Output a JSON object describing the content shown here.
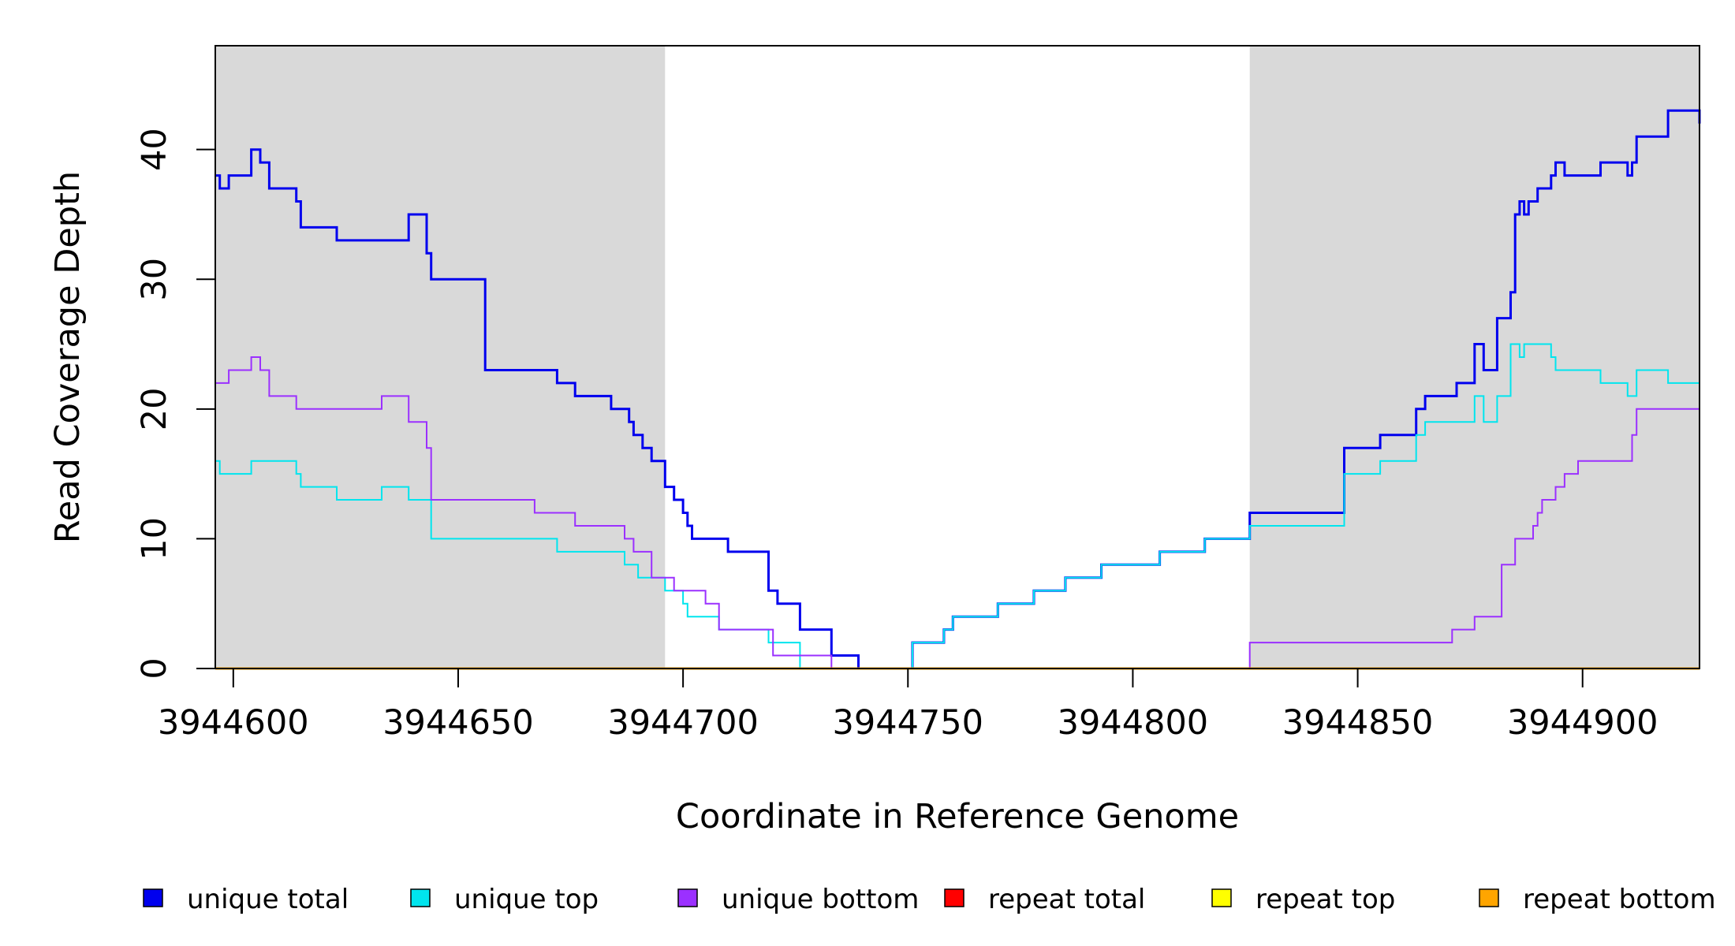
{
  "chart_data": {
    "type": "line",
    "title": "",
    "xlabel": "Coordinate in Reference Genome",
    "ylabel": "Read Coverage Depth",
    "xlim": [
      3944596,
      3944926
    ],
    "ylim": [
      0,
      48
    ],
    "x_ticks": [
      3944600,
      3944650,
      3944700,
      3944750,
      3944800,
      3944850,
      3944900
    ],
    "x_tick_labels": [
      "3944600",
      "3944650",
      "3944700",
      "3944750",
      "3944800",
      "3944850",
      "3944900"
    ],
    "y_ticks": [
      0,
      10,
      20,
      30,
      40
    ],
    "y_tick_labels": [
      "0",
      "10",
      "20",
      "30",
      "40"
    ],
    "shaded_regions": [
      [
        3944596,
        3944696
      ],
      [
        3944826,
        3944926
      ]
    ],
    "shade_color": "#d9d9d9",
    "legend_position": "bottom",
    "legend": [
      {
        "name": "unique total",
        "color": "#0000ee"
      },
      {
        "name": "unique top",
        "color": "#00e5ee"
      },
      {
        "name": "unique bottom",
        "color": "#9b30ff"
      },
      {
        "name": "repeat total",
        "color": "#ff0000"
      },
      {
        "name": "repeat top",
        "color": "#ffff00"
      },
      {
        "name": "repeat bottom",
        "color": "#ffa500"
      }
    ],
    "series": [
      {
        "name": "unique total",
        "color": "#0000ee",
        "stroke": 3,
        "x": [
          3944596,
          3944597,
          3944599,
          3944600,
          3944604,
          3944606,
          3944608,
          3944614,
          3944615,
          3944623,
          3944633,
          3944639,
          3944643,
          3944644,
          3944656,
          3944667,
          3944672,
          3944676,
          3944684,
          3944687,
          3944688,
          3944689,
          3944691,
          3944693,
          3944696,
          3944698,
          3944700,
          3944701,
          3944702,
          3944708,
          3944710,
          3944719,
          3944721,
          3944726,
          3944733,
          3944739,
          3944751,
          3944758,
          3944760,
          3944770,
          3944778,
          3944785,
          3944793,
          3944806,
          3944816,
          3944826,
          3944847,
          3944855,
          3944863,
          3944865,
          3944872,
          3944876,
          3944878,
          3944881,
          3944884,
          3944885,
          3944886,
          3944887,
          3944888,
          3944890,
          3944893,
          3944894,
          3944896,
          3944904,
          3944910,
          3944911,
          3944912,
          3944919,
          3944926
        ],
        "y": [
          38,
          37,
          38,
          38,
          40,
          39,
          37,
          36,
          34,
          33,
          33,
          35,
          32,
          30,
          23,
          23,
          22,
          21,
          20,
          20,
          19,
          18,
          17,
          16,
          14,
          13,
          12,
          11,
          10,
          10,
          9,
          6,
          5,
          3,
          1,
          0,
          2,
          3,
          4,
          5,
          6,
          7,
          8,
          9,
          10,
          12,
          17,
          18,
          20,
          21,
          22,
          25,
          23,
          27,
          29,
          35,
          36,
          35,
          36,
          37,
          38,
          39,
          38,
          39,
          38,
          39,
          41,
          43,
          42
        ]
      },
      {
        "name": "unique top",
        "color": "#00e5ee",
        "stroke": 2,
        "x": [
          3944596,
          3944597,
          3944600,
          3944604,
          3944614,
          3944615,
          3944623,
          3944633,
          3944639,
          3944644,
          3944672,
          3944684,
          3944687,
          3944688,
          3944690,
          3944693,
          3944696,
          3944698,
          3944700,
          3944701,
          3944702,
          3944708,
          3944710,
          3944719,
          3944726,
          3944733,
          3944739,
          3944751,
          3944758,
          3944760,
          3944770,
          3944778,
          3944785,
          3944793,
          3944806,
          3944816,
          3944826,
          3944847,
          3944855,
          3944863,
          3944865,
          3944872,
          3944876,
          3944878,
          3944881,
          3944884,
          3944885,
          3944886,
          3944887,
          3944890,
          3944893,
          3944894,
          3944896,
          3944904,
          3944910,
          3944912,
          3944919,
          3944926
        ],
        "y": [
          16,
          15,
          15,
          16,
          15,
          14,
          13,
          14,
          13,
          10,
          9,
          9,
          8,
          8,
          7,
          7,
          6,
          6,
          5,
          4,
          4,
          3,
          3,
          2,
          0,
          0,
          0,
          2,
          3,
          4,
          5,
          6,
          7,
          8,
          9,
          10,
          11,
          15,
          16,
          18,
          19,
          19,
          21,
          19,
          21,
          25,
          25,
          24,
          25,
          25,
          24,
          23,
          23,
          22,
          21,
          23,
          22,
          22
        ]
      },
      {
        "name": "unique bottom",
        "color": "#9b30ff",
        "stroke": 2,
        "x": [
          3944596,
          3944599,
          3944604,
          3944606,
          3944608,
          3944614,
          3944633,
          3944639,
          3944643,
          3944644,
          3944667,
          3944676,
          3944684,
          3944687,
          3944688,
          3944689,
          3944693,
          3944698,
          3944705,
          3944708,
          3944710,
          3944720,
          3944733,
          3944816,
          3944826,
          3944866,
          3944871,
          3944876,
          3944882,
          3944885,
          3944889,
          3944890,
          3944891,
          3944893,
          3944894,
          3944896,
          3944898,
          3944899,
          3944902,
          3944911,
          3944912,
          3944926
        ],
        "y": [
          22,
          23,
          24,
          23,
          21,
          20,
          21,
          19,
          17,
          13,
          12,
          11,
          11,
          10,
          10,
          9,
          7,
          6,
          5,
          3,
          3,
          1,
          0,
          0,
          2,
          2,
          3,
          4,
          8,
          10,
          11,
          12,
          13,
          13,
          14,
          15,
          15,
          16,
          16,
          18,
          20,
          20
        ]
      },
      {
        "name": "repeat total",
        "color": "#ff0000",
        "stroke": 2,
        "x": [
          3944596,
          3944926
        ],
        "y": [
          0,
          0
        ]
      },
      {
        "name": "repeat top",
        "color": "#ffff00",
        "stroke": 2,
        "x": [
          3944596,
          3944926
        ],
        "y": [
          0,
          0
        ]
      },
      {
        "name": "repeat bottom",
        "color": "#ffa500",
        "stroke": 3,
        "x": [
          3944596,
          3944926
        ],
        "y": [
          0,
          0
        ]
      }
    ]
  }
}
